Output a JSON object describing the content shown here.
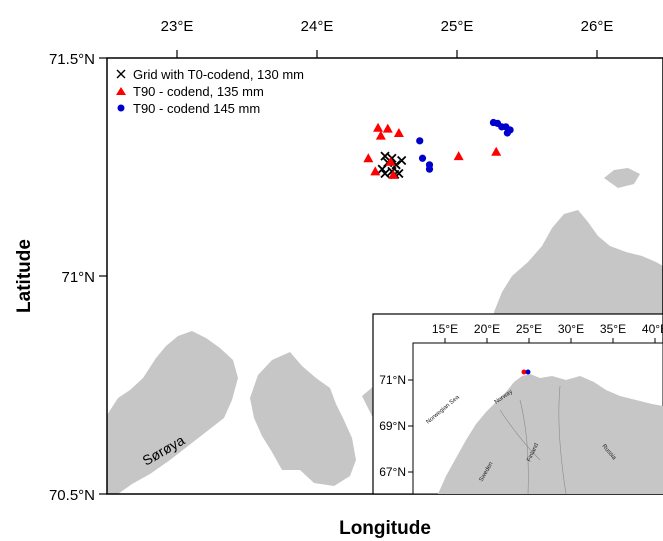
{
  "map": {
    "xlabel": "Longitude",
    "ylabel": "Latitude",
    "lon_ticks": [
      "23°E",
      "24°E",
      "25°E",
      "26°E"
    ],
    "lat_ticks": [
      "71.5°N",
      "71°N",
      "70.5°N"
    ],
    "xlim": [
      22.5,
      26.5
    ],
    "ylim": [
      70.5,
      71.5
    ],
    "land_color": "#c6c6c6",
    "place_label": "Sørøya"
  },
  "legend": {
    "placement": "top-left",
    "entries": [
      {
        "symbol": "cross",
        "label": "Grid with T0-codend, 130 mm",
        "color": "#000000"
      },
      {
        "symbol": "triangle",
        "label": "T90 - codend, 135 mm",
        "color": "#ff0000"
      },
      {
        "symbol": "circle",
        "label": "T90 - codend 145 mm",
        "color": "#0000cc"
      }
    ]
  },
  "chart_data": {
    "type": "scatter",
    "xlabel": "Longitude",
    "ylabel": "Latitude",
    "xlim": [
      22.5,
      26.5
    ],
    "ylim": [
      70.5,
      71.5
    ],
    "series": [
      {
        "name": "Grid with T0-codend, 130 mm",
        "marker": "cross",
        "color": "#000000",
        "points": [
          [
            24.5,
            71.275
          ],
          [
            24.55,
            71.27
          ],
          [
            24.62,
            71.265
          ],
          [
            24.52,
            71.26
          ],
          [
            24.58,
            71.255
          ],
          [
            24.48,
            71.245
          ],
          [
            24.55,
            71.24
          ],
          [
            24.6,
            71.235
          ],
          [
            24.5,
            71.235
          ],
          [
            24.57,
            71.233
          ]
        ]
      },
      {
        "name": "T90 - codend, 135 mm",
        "marker": "triangle",
        "color": "#ff0000",
        "points": [
          [
            24.45,
            71.34
          ],
          [
            24.52,
            71.338
          ],
          [
            24.6,
            71.328
          ],
          [
            24.47,
            71.322
          ],
          [
            24.38,
            71.27
          ],
          [
            24.54,
            71.262
          ],
          [
            24.43,
            71.24
          ],
          [
            24.56,
            71.232
          ],
          [
            25.03,
            71.275
          ],
          [
            25.3,
            71.285
          ]
        ]
      },
      {
        "name": "T90 - codend 145 mm",
        "marker": "circle",
        "color": "#0000cc",
        "points": [
          [
            25.28,
            71.352
          ],
          [
            25.31,
            71.35
          ],
          [
            25.34,
            71.342
          ],
          [
            25.37,
            71.342
          ],
          [
            25.4,
            71.335
          ],
          [
            25.38,
            71.328
          ],
          [
            24.75,
            71.31
          ],
          [
            24.77,
            71.27
          ],
          [
            24.82,
            71.255
          ],
          [
            24.82,
            71.245
          ]
        ]
      }
    ]
  },
  "inset": {
    "lon_ticks": [
      "15°E",
      "20°E",
      "25°E",
      "30°E",
      "35°E",
      "40°E"
    ],
    "lat_ticks": [
      "71°N",
      "69°N",
      "67°N"
    ],
    "labels": {
      "norwegian_sea": "Norwegian Sea",
      "norway": "Norway",
      "sweden": "Sweden",
      "finland": "Finland",
      "russia": "Russia"
    },
    "marker_colors": [
      "#ff0000",
      "#0000cc"
    ]
  }
}
